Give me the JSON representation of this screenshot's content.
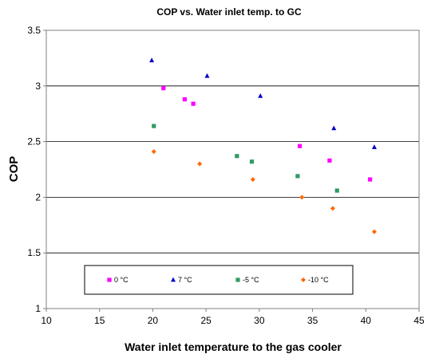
{
  "chart_data": {
    "type": "scatter",
    "title": "COP vs. Water inlet temp. to GC",
    "xlabel": "Water inlet temperature to the gas cooler",
    "ylabel": "COP",
    "xlim": [
      10,
      45
    ],
    "ylim": [
      1,
      3.5
    ],
    "x_ticks": [
      "10",
      "15",
      "20",
      "25",
      "30",
      "35",
      "40",
      "45"
    ],
    "y_ticks": [
      "1",
      "1.5",
      "2",
      "2.5",
      "3",
      "3.5"
    ],
    "grid": "horizontal major gridlines",
    "legend_position": "bottom-inside",
    "series": [
      {
        "name": "0 °C",
        "marker": "square",
        "color": "#ff00ff",
        "points": [
          [
            21.0,
            2.98
          ],
          [
            23.0,
            2.88
          ],
          [
            23.8,
            2.84
          ],
          [
            33.8,
            2.46
          ],
          [
            36.6,
            2.33
          ],
          [
            40.4,
            2.16
          ]
        ]
      },
      {
        "name": "7 °C",
        "marker": "triangle",
        "color": "#0000cc",
        "points": [
          [
            19.9,
            3.23
          ],
          [
            25.1,
            3.09
          ],
          [
            30.1,
            2.91
          ],
          [
            37.0,
            2.62
          ],
          [
            40.8,
            2.45
          ]
        ]
      },
      {
        "name": "-5 °C",
        "marker": "square",
        "color": "#339966",
        "points": [
          [
            20.1,
            2.64
          ],
          [
            27.9,
            2.37
          ],
          [
            29.3,
            2.32
          ],
          [
            33.6,
            2.19
          ],
          [
            37.3,
            2.06
          ]
        ]
      },
      {
        "name": "-10 °C",
        "marker": "diamond",
        "color": "#ff6600",
        "points": [
          [
            20.1,
            2.41
          ],
          [
            24.4,
            2.3
          ],
          [
            29.4,
            2.16
          ],
          [
            34.0,
            2.0
          ],
          [
            36.9,
            1.9
          ],
          [
            40.8,
            1.69
          ]
        ]
      }
    ]
  }
}
